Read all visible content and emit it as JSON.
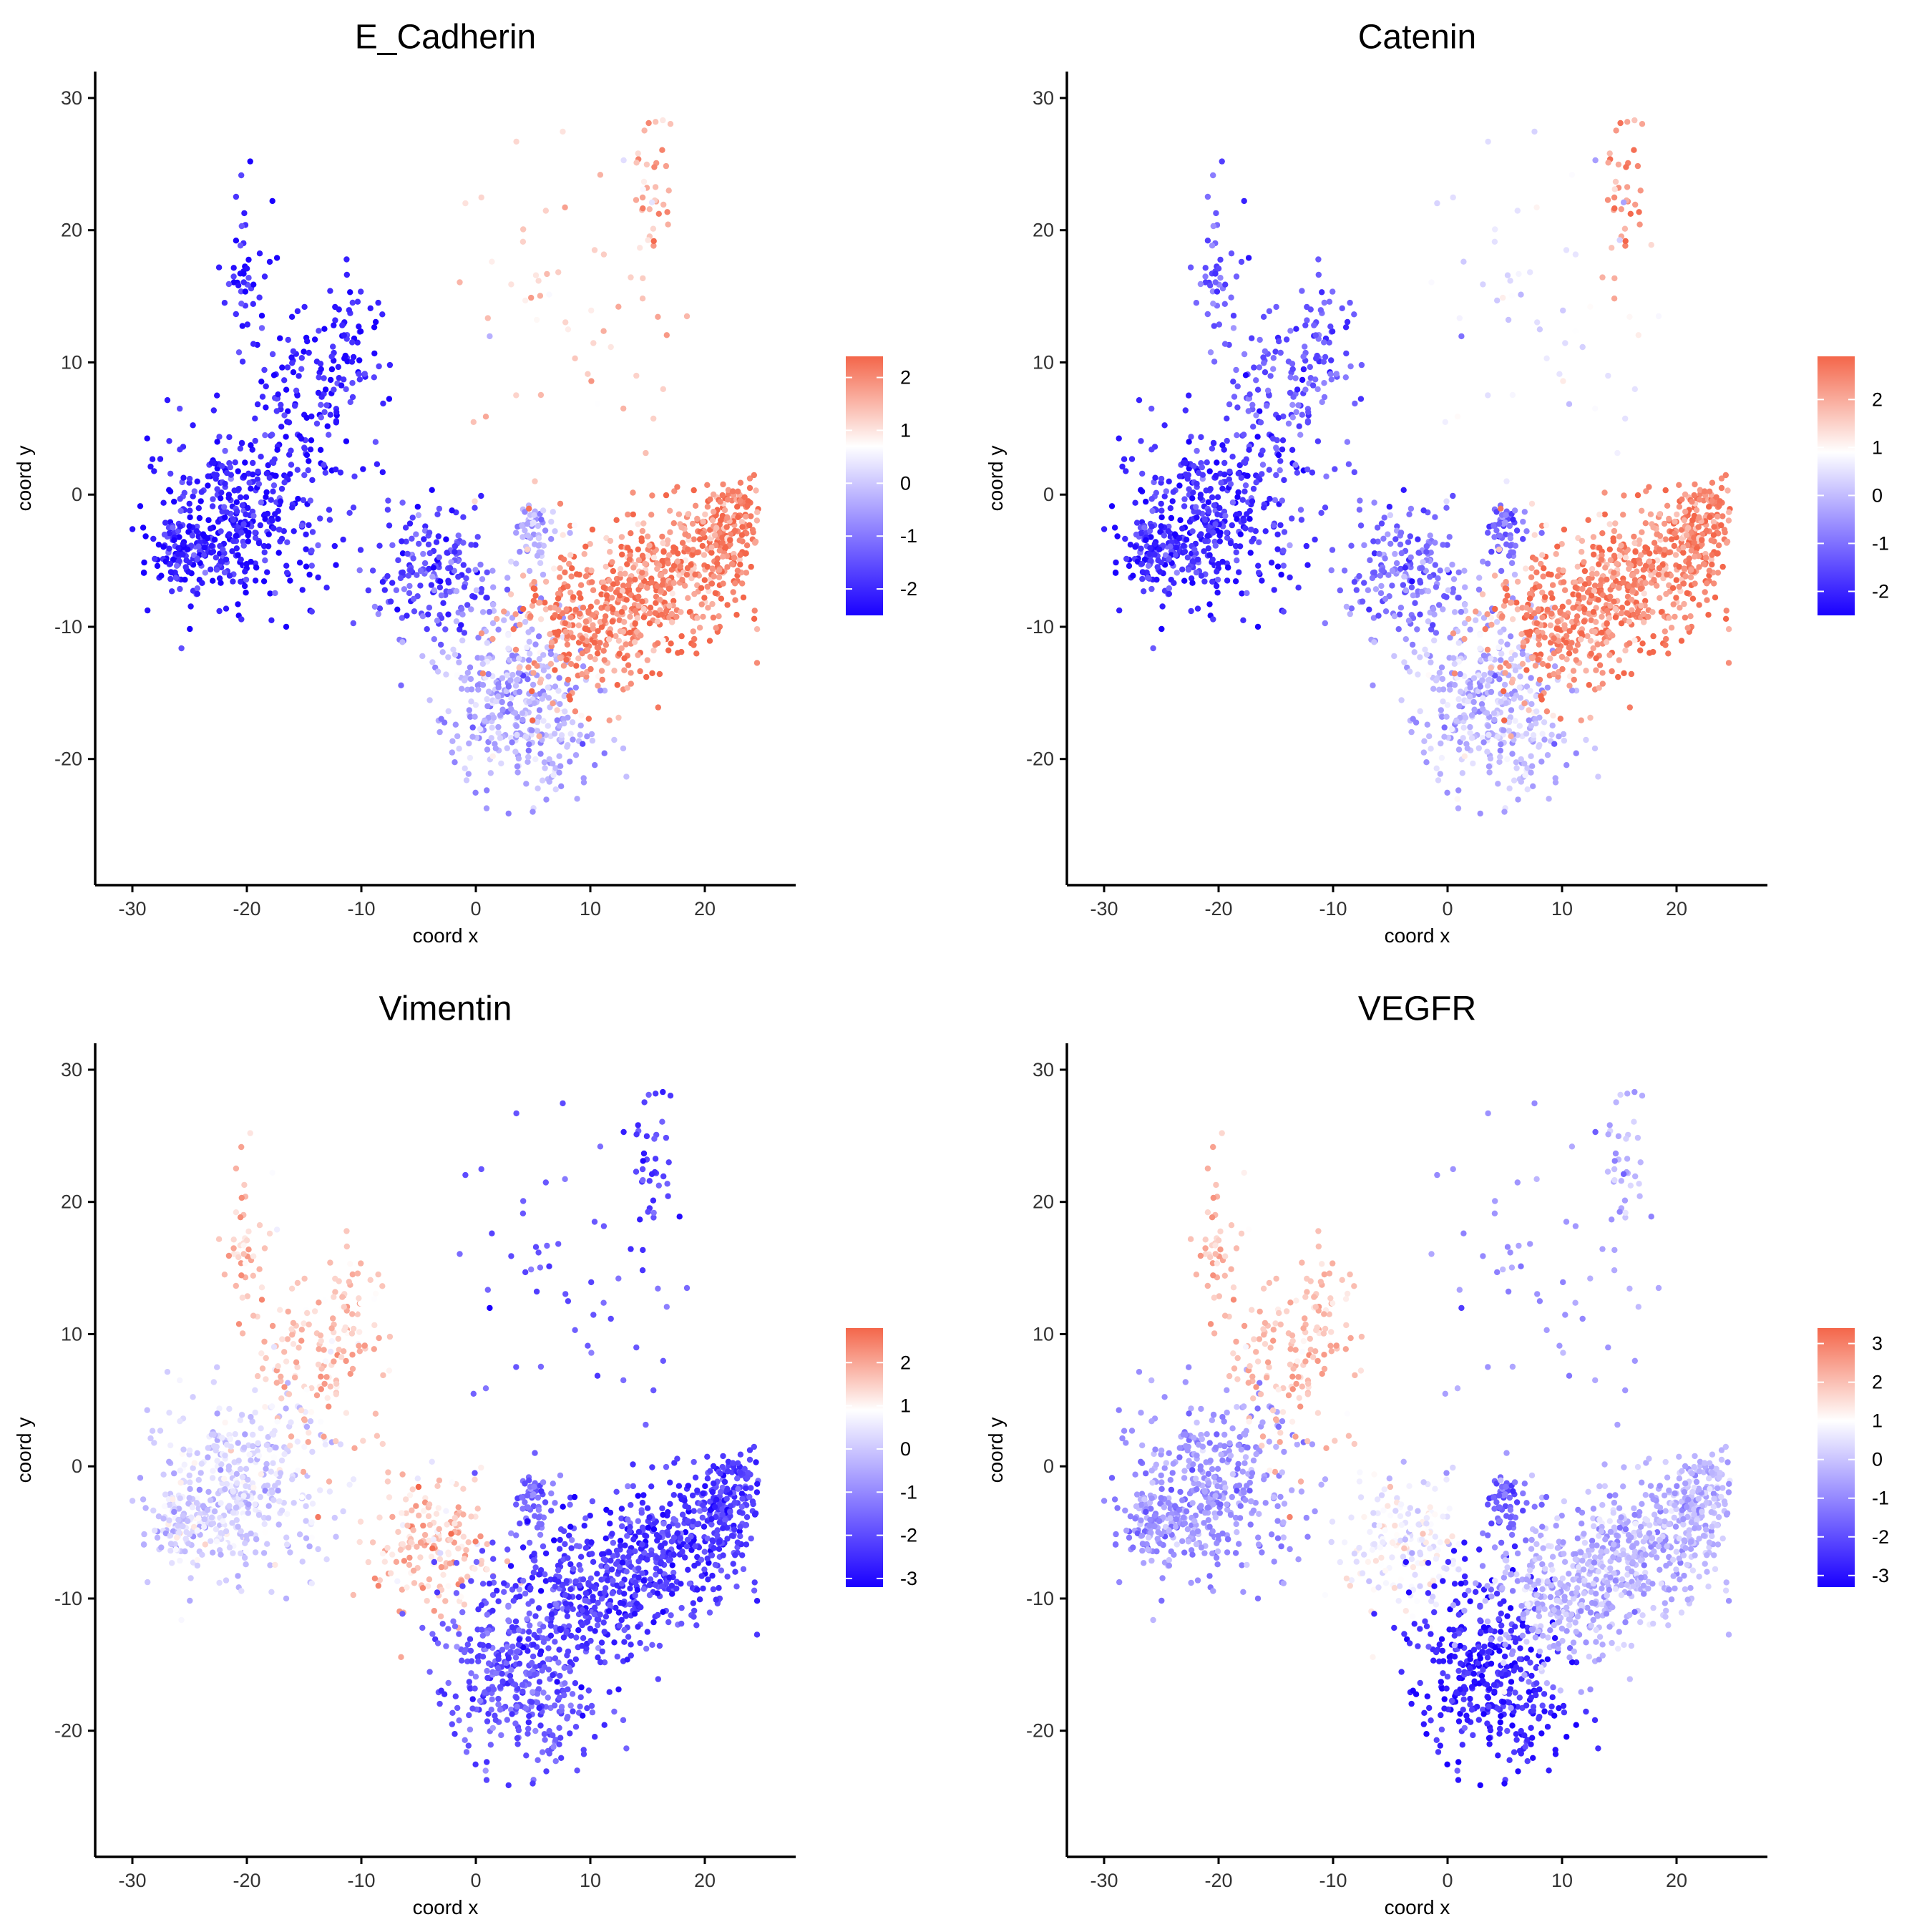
{
  "chart_data": [
    {
      "type": "scatter",
      "title": "E_Cadherin",
      "xlabel": "coord x",
      "ylabel": "coord y",
      "xlim": [
        -32,
        27
      ],
      "ylim": [
        -29,
        32
      ],
      "x_ticks": [
        -30,
        -20,
        -10,
        0,
        10,
        20
      ],
      "y_ticks": [
        -20,
        -10,
        0,
        10,
        20,
        30
      ],
      "x_tick_labels": [
        "-30",
        "-20",
        "-10",
        "0",
        "10",
        "20"
      ],
      "y_tick_labels": [
        "-20",
        "-10",
        "0",
        "10",
        "20",
        "30"
      ],
      "grid": false,
      "legend": {
        "position": "right",
        "min": -2.5,
        "max": 2.4,
        "mid": 0.7,
        "ticks": [
          2,
          1,
          0,
          -1,
          -2
        ],
        "tick_labels": [
          "2",
          "1",
          "0",
          "-1",
          "-2"
        ]
      },
      "colors": {
        "low": "#1a00ff",
        "mid": "#ffffff",
        "high": "#f4664a"
      },
      "regions": {
        "left_arm": -2.1,
        "upper_branch": -2.1,
        "neck": -1.6,
        "blob": -0.4,
        "upper_right_arm": 1.5,
        "lower_stem": -0.3,
        "right_wing": 2.0,
        "sparse_top": 1.2
      }
    },
    {
      "type": "scatter",
      "title": "Catenin",
      "xlabel": "coord x",
      "ylabel": "coord y",
      "xlim": [
        -32,
        27
      ],
      "ylim": [
        -29,
        32
      ],
      "x_ticks": [
        -30,
        -20,
        -10,
        0,
        10,
        20
      ],
      "y_ticks": [
        -20,
        -10,
        0,
        10,
        20,
        30
      ],
      "x_tick_labels": [
        "-30",
        "-20",
        "-10",
        "0",
        "10",
        "20"
      ],
      "y_tick_labels": [
        "-20",
        "-10",
        "0",
        "10",
        "20",
        "30"
      ],
      "grid": false,
      "legend": {
        "position": "right",
        "min": -2.5,
        "max": 2.9,
        "mid": 0.9,
        "ticks": [
          2,
          1,
          0,
          -1,
          -2
        ],
        "tick_labels": [
          "2",
          "1",
          "0",
          "-1",
          "-2"
        ]
      },
      "colors": {
        "low": "#1a00ff",
        "mid": "#ffffff",
        "high": "#f4664a"
      },
      "regions": {
        "left_arm": -1.9,
        "upper_branch": -1.3,
        "neck": -1.0,
        "blob": -1.2,
        "upper_right_arm": 2.2,
        "lower_stem": 0.0,
        "right_wing": 2.4,
        "sparse_top": 0.5
      }
    },
    {
      "type": "scatter",
      "title": "Vimentin",
      "xlabel": "coord x",
      "ylabel": "coord y",
      "xlim": [
        -32,
        27
      ],
      "ylim": [
        -29,
        32
      ],
      "x_ticks": [
        -30,
        -20,
        -10,
        0,
        10,
        20
      ],
      "y_ticks": [
        -20,
        -10,
        0,
        10,
        20,
        30
      ],
      "x_tick_labels": [
        "-30",
        "-20",
        "-10",
        "0",
        "10",
        "20"
      ],
      "y_tick_labels": [
        "-20",
        "-10",
        "0",
        "10",
        "20",
        "30"
      ],
      "grid": false,
      "legend": {
        "position": "right",
        "min": -3.2,
        "max": 2.8,
        "mid": 0.9,
        "ticks": [
          2,
          1,
          0,
          -1,
          -2,
          -3
        ],
        "tick_labels": [
          "2",
          "1",
          "0",
          "-1",
          "-2",
          "-3"
        ]
      },
      "colors": {
        "low": "#1a00ff",
        "mid": "#ffffff",
        "high": "#f4664a"
      },
      "regions": {
        "left_arm": 0.2,
        "upper_branch": 1.6,
        "neck": 1.6,
        "blob": -1.6,
        "upper_right_arm": -2.2,
        "lower_stem": -1.8,
        "right_wing": -2.3,
        "sparse_top": -1.8
      }
    },
    {
      "type": "scatter",
      "title": "VEGFR",
      "xlabel": "coord x",
      "ylabel": "coord y",
      "xlim": [
        -32,
        27
      ],
      "ylim": [
        -29,
        32
      ],
      "x_ticks": [
        -30,
        -20,
        -10,
        0,
        10,
        20
      ],
      "y_ticks": [
        -20,
        -10,
        0,
        10,
        20,
        30
      ],
      "x_tick_labels": [
        "-30",
        "-20",
        "-10",
        "0",
        "10",
        "20"
      ],
      "y_tick_labels": [
        "-20",
        "-10",
        "0",
        "10",
        "20",
        "30"
      ],
      "grid": false,
      "legend": {
        "position": "right",
        "min": -3.3,
        "max": 3.4,
        "mid": 1.0,
        "ticks": [
          3,
          2,
          1,
          0,
          -1,
          -2,
          -3
        ],
        "tick_labels": [
          "3",
          "2",
          "1",
          "0",
          "-1",
          "-2",
          "-3"
        ]
      },
      "colors": {
        "low": "#1a00ff",
        "mid": "#ffffff",
        "high": "#f4664a"
      },
      "regions": {
        "left_arm": -0.8,
        "upper_branch": 2.0,
        "neck": 0.8,
        "blob": -1.8,
        "upper_right_arm": -0.3,
        "lower_stem": -2.7,
        "right_wing": -0.3,
        "sparse_top": -0.8
      }
    }
  ]
}
